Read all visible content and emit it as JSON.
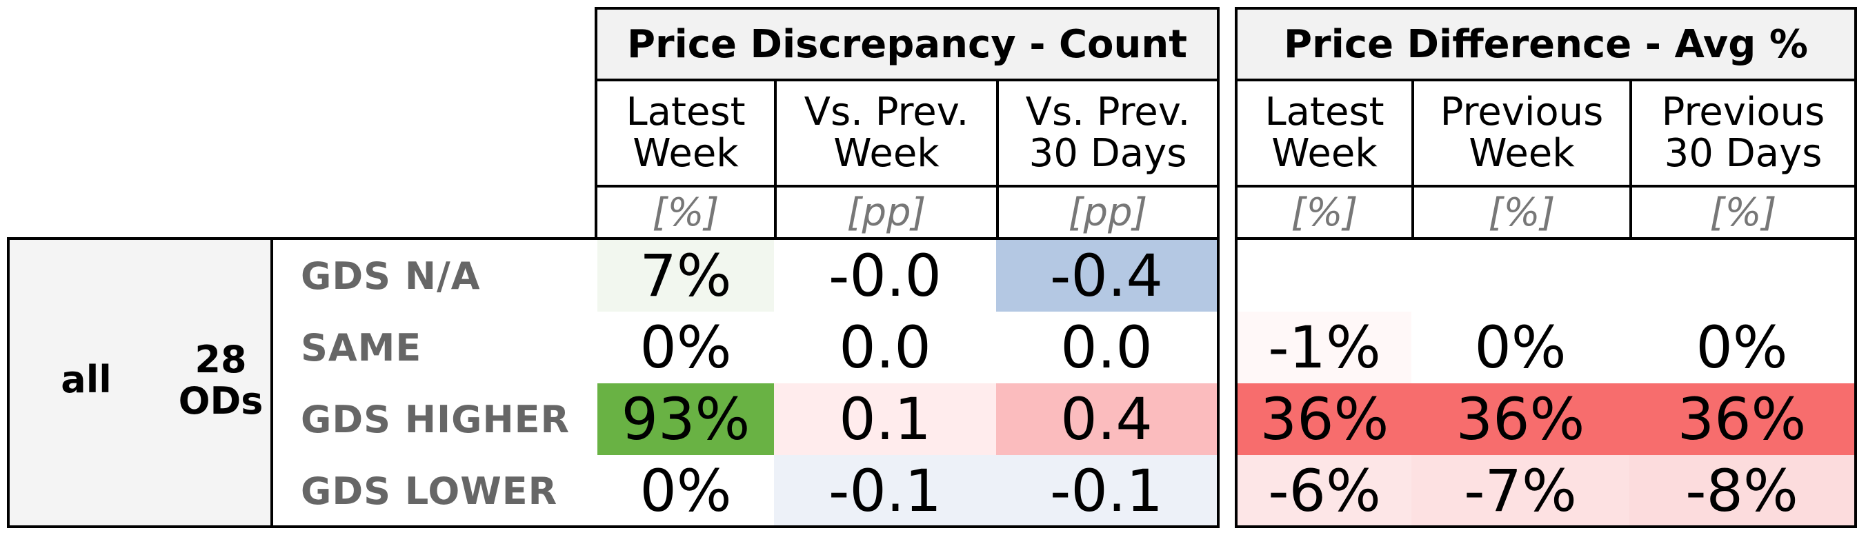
{
  "table": {
    "groups": [
      {
        "title": "Price Discrepancy - Count",
        "columns": [
          {
            "label": "Latest\nWeek",
            "unit": "[%]"
          },
          {
            "label": "Vs. Prev.\nWeek",
            "unit": "[pp]"
          },
          {
            "label": "Vs. Prev.\n30 Days",
            "unit": "[pp]"
          }
        ]
      },
      {
        "title": "Price Difference - Avg %",
        "columns": [
          {
            "label": "Latest\nWeek",
            "unit": "[%]"
          },
          {
            "label": "Previous\nWeek",
            "unit": "[%]"
          },
          {
            "label": "Previous\n30 Days",
            "unit": "[%]"
          }
        ]
      }
    ],
    "segment": {
      "name": "all",
      "od_count": "28\nODs"
    },
    "rows": [
      {
        "label": "GDS N/A",
        "count": [
          "7%",
          "-0.0",
          "-0.4"
        ],
        "count_colors": [
          "#f2f7ef",
          "#ffffff",
          "#b4c8e3"
        ],
        "diff": [
          "",
          "",
          ""
        ],
        "diff_colors": [
          "#ffffff",
          "#ffffff",
          "#ffffff"
        ]
      },
      {
        "label": "SAME",
        "count": [
          "0%",
          "0.0",
          "0.0"
        ],
        "count_colors": [
          "#ffffff",
          "#ffffff",
          "#ffffff"
        ],
        "diff": [
          "-1%",
          "0%",
          "0%"
        ],
        "diff_colors": [
          "#fff8f8",
          "#ffffff",
          "#ffffff"
        ]
      },
      {
        "label": "GDS HIGHER",
        "count": [
          "93%",
          "0.1",
          "0.4"
        ],
        "count_colors": [
          "#69b244",
          "#ffeced",
          "#fbbcbe"
        ],
        "diff": [
          "36%",
          "36%",
          "36%"
        ],
        "diff_colors": [
          "#f76d6d",
          "#f76d6d",
          "#f76d6d"
        ]
      },
      {
        "label": "GDS LOWER",
        "count": [
          "0%",
          "-0.1",
          "-0.1"
        ],
        "count_colors": [
          "#ffffff",
          "#edf1f8",
          "#edf1f8"
        ],
        "diff": [
          "-6%",
          "-7%",
          "-8%"
        ],
        "diff_colors": [
          "#fde6e7",
          "#fde1e2",
          "#fcdcdd"
        ]
      }
    ]
  }
}
